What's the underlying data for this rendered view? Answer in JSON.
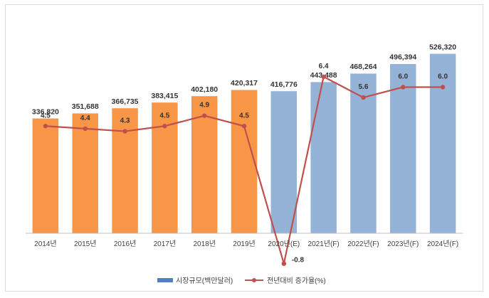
{
  "chart_data": {
    "type": "bar",
    "categories": [
      "2014년",
      "2015년",
      "2016년",
      "2017년",
      "2018년",
      "2019년",
      "2020년(E)",
      "2021년(F)",
      "2022년(F)",
      "2023년(F)",
      "2024년(F)"
    ],
    "series": [
      {
        "name": "시장규모(백만달러)",
        "type": "bar",
        "values": [
          336820,
          351688,
          366735,
          383415,
          402180,
          420317,
          416776,
          443488,
          468264,
          496394,
          526320
        ],
        "value_labels": [
          "336,820",
          "351,688",
          "366,735",
          "383,415",
          "402,180",
          "420,317",
          "416,776",
          "443,488",
          "468,264",
          "496,394",
          "526,320"
        ],
        "colors": [
          "#f79646",
          "#f79646",
          "#f79646",
          "#f79646",
          "#f79646",
          "#f79646",
          "#95b3d7",
          "#95b3d7",
          "#95b3d7",
          "#95b3d7",
          "#95b3d7"
        ],
        "legend_color": "#4f81bd"
      },
      {
        "name": "전년대비 증가율(%)",
        "type": "line",
        "values": [
          4.5,
          4.4,
          4.3,
          4.5,
          4.9,
          4.5,
          -0.8,
          6.4,
          5.6,
          6.0,
          6.0
        ],
        "value_labels": [
          "4.5",
          "4.4",
          "4.3",
          "4.5",
          "4.9",
          "4.5",
          "-0.8",
          "6.4",
          "5.6",
          "6.0",
          "6.0"
        ],
        "color": "#c0504d"
      }
    ],
    "title": "",
    "xlabel": "",
    "ylabel": "",
    "ylim": [
      0,
      550000
    ],
    "y2lim": [
      -1.0,
      9.0
    ],
    "grid": false,
    "legend": "bottom"
  }
}
